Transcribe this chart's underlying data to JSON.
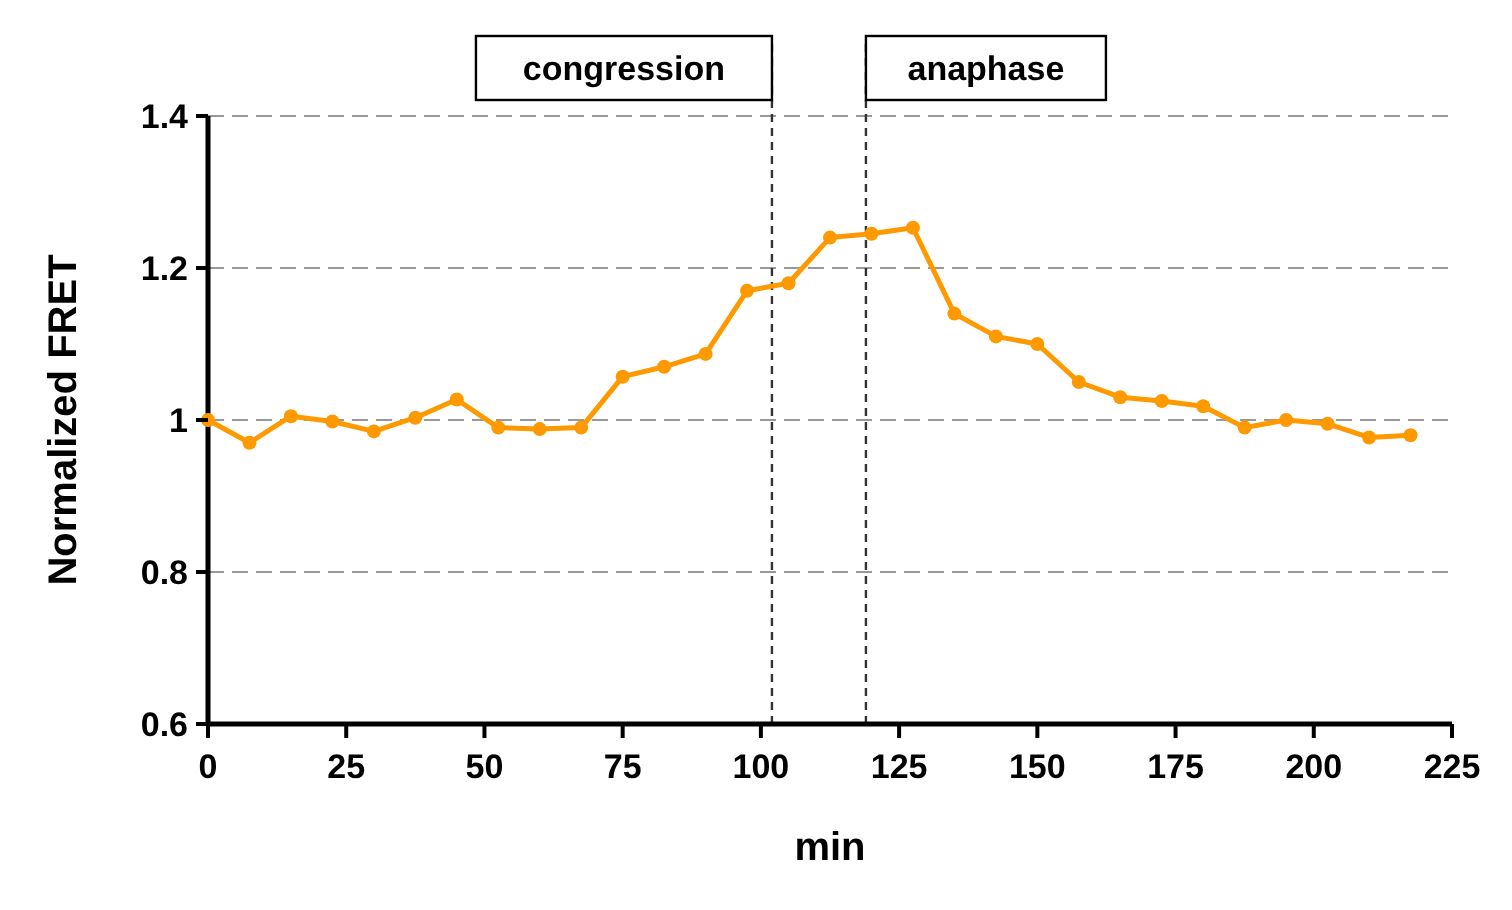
{
  "chart_data": {
    "type": "line",
    "xlabel": "min",
    "ylabel": "Normalized FRET",
    "x": [
      0,
      7.5,
      15,
      22.5,
      30,
      37.5,
      45,
      52.5,
      60,
      67.5,
      75,
      82.5,
      90,
      97.5,
      105,
      112.5,
      120,
      127.5,
      135,
      142.5,
      150,
      157.5,
      165,
      172.5,
      180,
      187.5,
      195,
      202.5,
      210,
      217.5
    ],
    "series": [
      {
        "color": "#ff9900",
        "values": [
          1.0,
          0.97,
          1.005,
          0.998,
          0.985,
          1.003,
          1.027,
          0.99,
          0.988,
          0.99,
          1.057,
          1.07,
          1.087,
          1.17,
          1.18,
          1.24,
          1.245,
          1.253,
          1.14,
          1.11,
          1.1,
          1.05,
          1.03,
          1.025,
          1.018,
          0.99,
          1.0,
          0.995,
          0.977,
          0.98
        ]
      }
    ],
    "xlim": [
      0,
      225
    ],
    "xticks": [
      0,
      25,
      50,
      75,
      100,
      125,
      150,
      175,
      200,
      225
    ],
    "ylim": [
      0.6,
      1.4
    ],
    "yticks": [
      0.6,
      0.8,
      1,
      1.2,
      1.4
    ],
    "grid": "y",
    "marker": "circle",
    "line_style": "solid",
    "ref_lines": [
      {
        "axis": "x",
        "value": 102,
        "label": "congression",
        "color": "#333333",
        "line_style": "dashed"
      },
      {
        "axis": "x",
        "value": 119,
        "label": "anaphase",
        "color": "#333333",
        "line_style": "dashed"
      }
    ]
  }
}
